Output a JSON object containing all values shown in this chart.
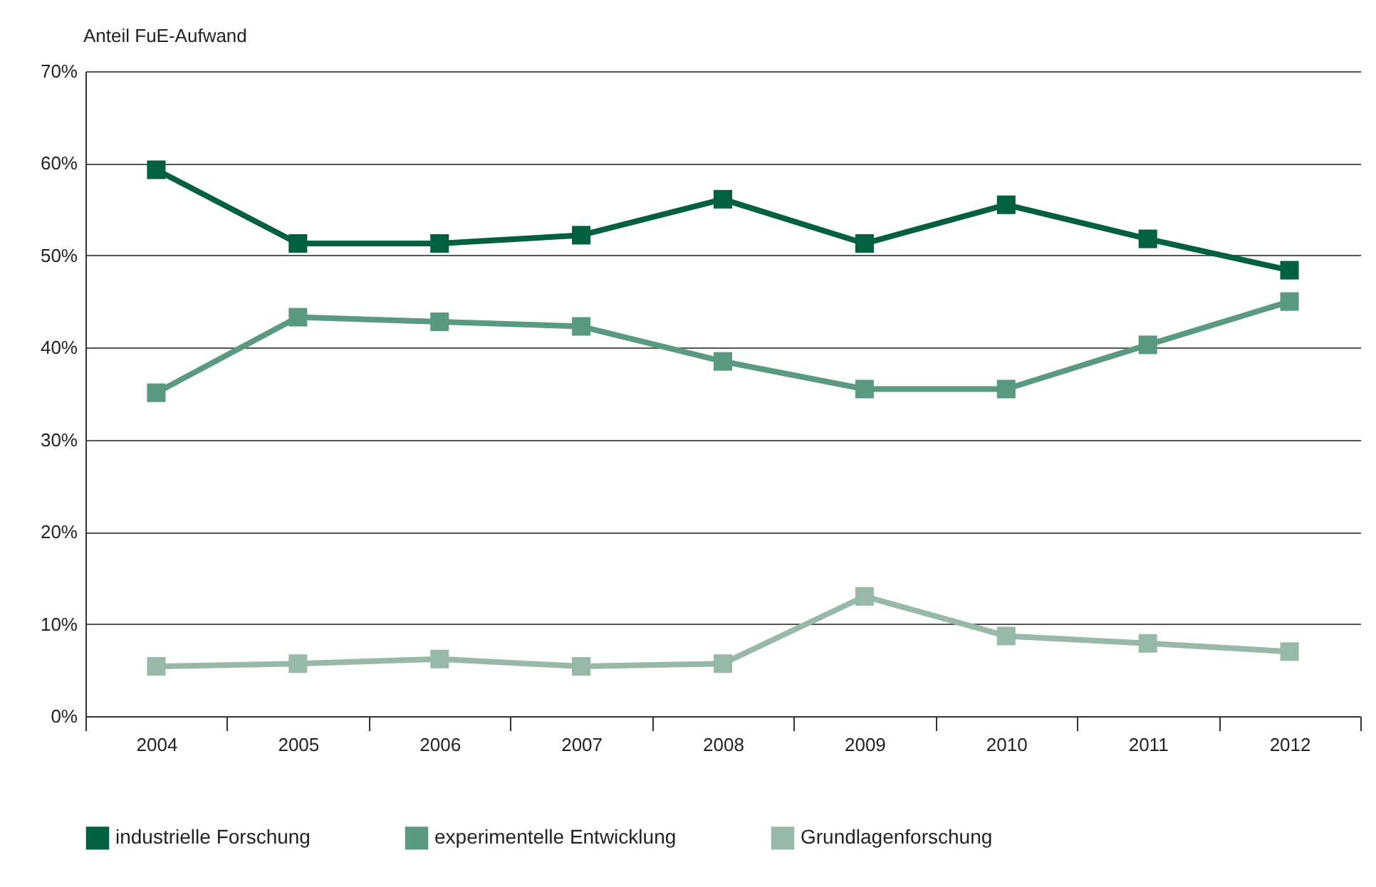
{
  "chart_data": {
    "type": "line",
    "ylabel": "Anteil FuE-Aufwand",
    "categories": [
      "2004",
      "2005",
      "2006",
      "2007",
      "2008",
      "2009",
      "2010",
      "2011",
      "2012"
    ],
    "ylim": [
      0,
      70
    ],
    "yticks": [
      {
        "value": 0,
        "label": "0%"
      },
      {
        "value": 10,
        "label": "10%"
      },
      {
        "value": 20,
        "label": "20%"
      },
      {
        "value": 30,
        "label": "30%"
      },
      {
        "value": 40,
        "label": "40%"
      },
      {
        "value": 50,
        "label": "50%"
      },
      {
        "value": 60,
        "label": "60%"
      },
      {
        "value": 70,
        "label": "70%"
      }
    ],
    "grid": "y",
    "legend": "bottom",
    "marker": "square",
    "line_style": "solid",
    "series": [
      {
        "name": "industrielle Forschung",
        "color": "#006040",
        "values": [
          59.3,
          51.3,
          51.3,
          52.2,
          56.1,
          51.3,
          55.5,
          51.8,
          48.4
        ]
      },
      {
        "name": "experimentelle Entwicklung",
        "color": "#5a9a80",
        "values": [
          35.1,
          43.3,
          42.8,
          42.3,
          38.5,
          35.5,
          35.5,
          40.3,
          45.0
        ]
      },
      {
        "name": "Grundlagenforschung",
        "color": "#98b8a8",
        "values": [
          5.4,
          5.7,
          6.2,
          5.4,
          5.7,
          13.0,
          8.7,
          7.9,
          7.0
        ]
      }
    ]
  }
}
